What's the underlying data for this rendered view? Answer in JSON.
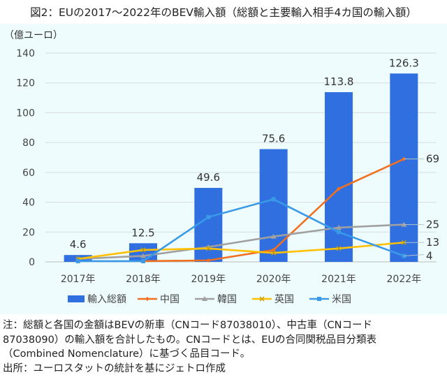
{
  "title": "図2：EUの2017～2022年のBEV輸入額（総額と主要輸入相手4カ国の輸入額）",
  "chart_data": {
    "type": "bar+line",
    "ylabel": "（億ユーロ）",
    "ylim": [
      0,
      140
    ],
    "yticks": [
      0,
      20,
      40,
      60,
      80,
      100,
      120,
      140
    ],
    "grid": true,
    "legend_position": "bottom",
    "categories": [
      "2017年",
      "2018年",
      "2019年",
      "2020年",
      "2021年",
      "2022年"
    ],
    "bar_series": {
      "name": "輸入総額",
      "values": [
        4.6,
        12.5,
        49.6,
        75.6,
        113.8,
        126.3
      ],
      "labels": [
        "4.6",
        "12.5",
        "49.6",
        "75.6",
        "113.8",
        "126.3"
      ],
      "color": "#2f6fe0"
    },
    "line_series": [
      {
        "name": "中国",
        "values": [
          null,
          0.5,
          1,
          8,
          49,
          69
        ],
        "end_label": "69",
        "color": "#f07020",
        "marker": "diamond"
      },
      {
        "name": "韓国",
        "values": [
          2,
          4,
          10,
          17,
          23,
          25
        ],
        "end_label": "25",
        "color": "#a0a0a0",
        "marker": "triangle"
      },
      {
        "name": "英国",
        "values": [
          2,
          8,
          9,
          6,
          9,
          13
        ],
        "end_label": "13",
        "color": "#ffc000",
        "marker": "x"
      },
      {
        "name": "米国",
        "values": [
          0.5,
          0.5,
          30,
          42,
          20,
          4
        ],
        "end_label": "4",
        "color": "#3a9ae8",
        "marker": "square"
      }
    ]
  },
  "notes": [
    "注：総額と各国の金額はBEVの新車（CNコード87038010）、中古車（CNコード",
    "87038090）の輸入額を合計したもの。CNコードとは、EUの合同関税品目分類表",
    "（Combined Nomenclature）に基づく品目コード。",
    "出所：ユーロスタットの統計を基にジェトロ作成"
  ]
}
